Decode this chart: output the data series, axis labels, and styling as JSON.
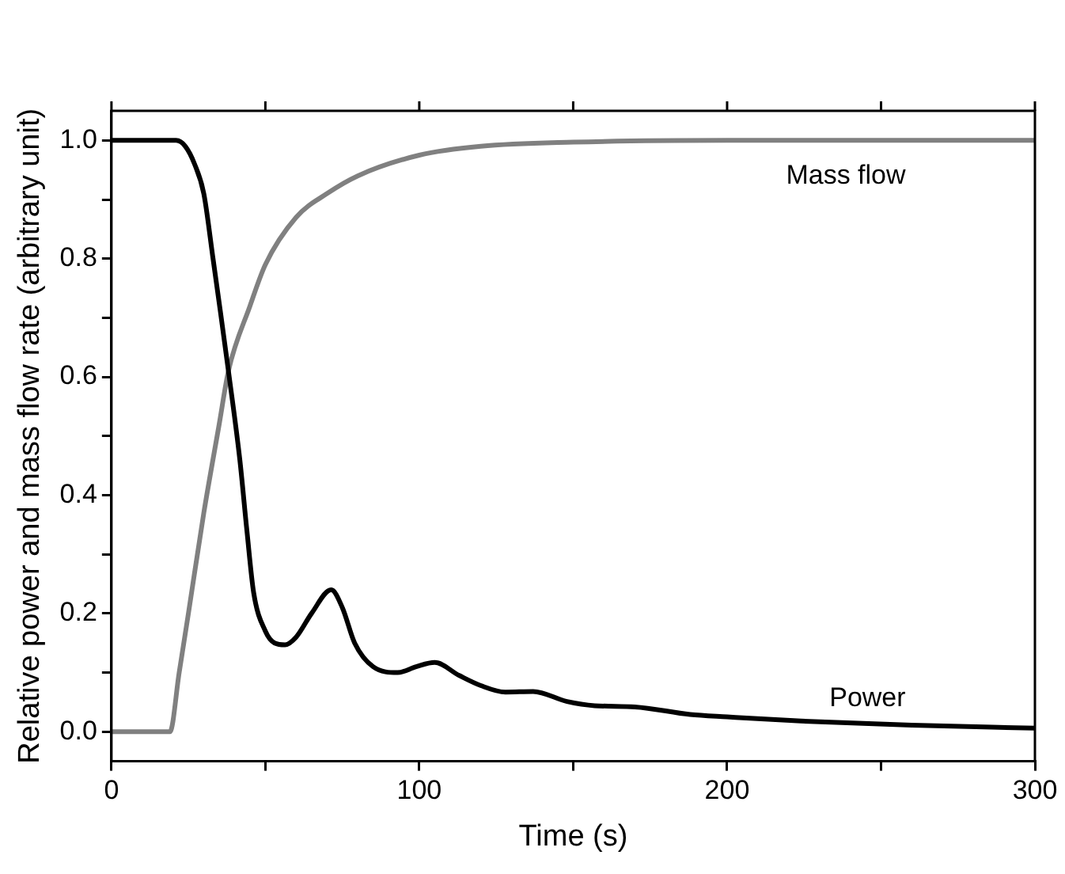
{
  "chart_data": {
    "type": "line",
    "xlabel": "Time (s)",
    "ylabel": "Relative power and mass flow rate (arbitrary unit)",
    "xlim": [
      0,
      300
    ],
    "ylim": [
      -0.05,
      1.05
    ],
    "xticks": [
      0,
      {
        "value": 50,
        "label": null
      },
      100,
      {
        "value": 150,
        "label": null
      },
      200,
      {
        "value": 250,
        "label": null
      },
      300
    ],
    "yticks": [
      {
        "value": 0,
        "label": "0.0"
      },
      {
        "value": 0.1,
        "label": null
      },
      0.2,
      {
        "value": 0.3,
        "label": null
      },
      0.4,
      {
        "value": 0.5,
        "label": null
      },
      0.6,
      {
        "value": 0.7,
        "label": null
      },
      0.8,
      {
        "value": 0.9,
        "label": null
      },
      {
        "value": 1,
        "label": "1.0"
      }
    ],
    "grid": false,
    "legend": false,
    "marker": "none",
    "line_style": "solid",
    "series": [
      {
        "name": "Power",
        "color": "#000000",
        "x": [
          0,
          21,
          24,
          27,
          30,
          33,
          35.4,
          38,
          41.7,
          44,
          46.2,
          50,
          53,
          56.4,
          60,
          65,
          71.4,
          75,
          79,
          85,
          93,
          99,
          105,
          113,
          120,
          128,
          137,
          148,
          157,
          170,
          188,
          200,
          224,
          260,
          300
        ],
        "values": [
          1,
          1,
          0.99,
          0.96,
          0.91,
          0.8,
          0.71,
          0.61,
          0.46,
          0.34,
          0.235,
          0.17,
          0.15,
          0.147,
          0.16,
          0.2,
          0.24,
          0.21,
          0.15,
          0.11,
          0.1,
          0.11,
          0.117,
          0.095,
          0.078,
          0.067,
          0.068,
          0.051,
          0.044,
          0.042,
          0.029,
          0.025,
          0.018,
          0.011,
          0.006
        ]
      },
      {
        "name": "Mass flow",
        "color": "#808080",
        "x": [
          0,
          19,
          22,
          25,
          30,
          35,
          38,
          45,
          50,
          60,
          70,
          80,
          100,
          120,
          150,
          200,
          300
        ],
        "values": [
          0,
          0,
          0.1,
          0.2,
          0.37,
          0.52,
          0.61,
          0.72,
          0.79,
          0.87,
          0.91,
          0.94,
          0.975,
          0.99,
          0.997,
          1,
          1
        ]
      }
    ]
  }
}
